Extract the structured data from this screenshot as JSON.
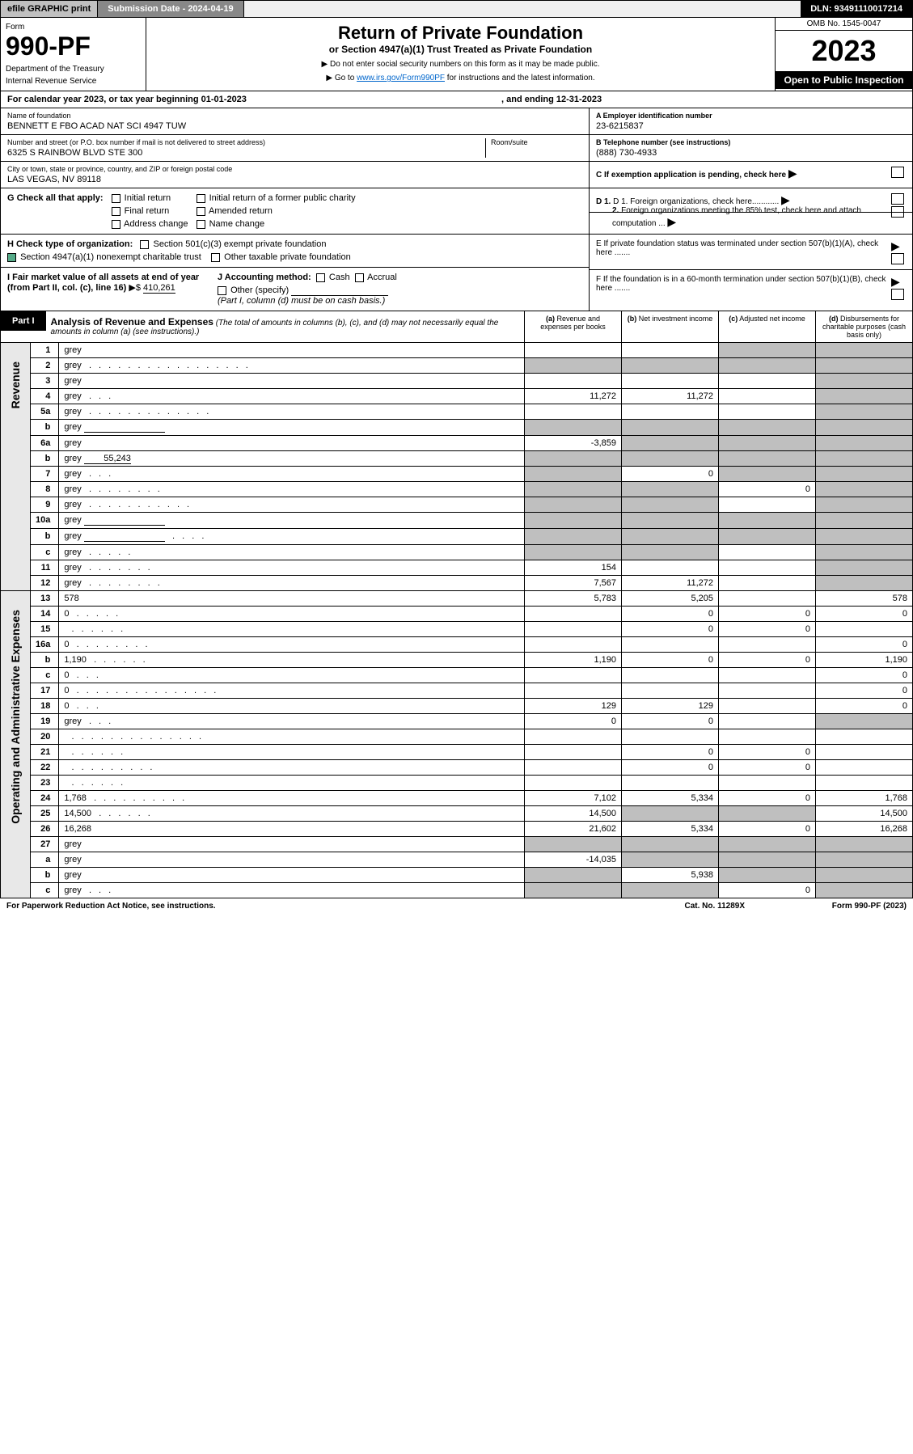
{
  "topbar": {
    "efile": "efile GRAPHIC print",
    "subdate_label": "Submission Date - 2024-04-19",
    "dln": "DLN: 93491110017214"
  },
  "header": {
    "form_label": "Form",
    "form_no": "990-PF",
    "dept": "Department of the Treasury",
    "irs": "Internal Revenue Service",
    "title": "Return of Private Foundation",
    "subtitle": "or Section 4947(a)(1) Trust Treated as Private Foundation",
    "note1": "▶ Do not enter social security numbers on this form as it may be made public.",
    "note2_pre": "▶ Go to ",
    "note2_link": "www.irs.gov/Form990PF",
    "note2_post": " for instructions and the latest information.",
    "omb": "OMB No. 1545-0047",
    "year": "2023",
    "open": "Open to Public Inspection"
  },
  "cal": {
    "text1": "For calendar year 2023, or tax year beginning 01-01-2023",
    "text2": ", and ending 12-31-2023"
  },
  "info": {
    "name_lbl": "Name of foundation",
    "name": "BENNETT E FBO ACAD NAT SCI 4947 TUW",
    "addr_lbl": "Number and street (or P.O. box number if mail is not delivered to street address)",
    "addr": "6325 S RAINBOW BLVD STE 300",
    "room_lbl": "Room/suite",
    "city_lbl": "City or town, state or province, country, and ZIP or foreign postal code",
    "city": "LAS VEGAS, NV  89118",
    "ein_lbl": "A Employer identification number",
    "ein": "23-6215837",
    "tel_lbl": "B Telephone number (see instructions)",
    "tel": "(888) 730-4933",
    "c_lbl": "C If exemption application is pending, check here",
    "d1": "D 1. Foreign organizations, check here............",
    "d2": "2. Foreign organizations meeting the 85% test, check here and attach computation ...",
    "e": "E  If private foundation status was terminated under section 507(b)(1)(A), check here .......",
    "f": "F  If the foundation is in a 60-month termination under section 507(b)(1)(B), check here .......",
    "g_lbl": "G Check all that apply:",
    "g_initial": "Initial return",
    "g_initial_former": "Initial return of a former public charity",
    "g_final": "Final return",
    "g_amended": "Amended return",
    "g_addr": "Address change",
    "g_name": "Name change",
    "h_lbl": "H Check type of organization:",
    "h_501": "Section 501(c)(3) exempt private foundation",
    "h_4947": "Section 4947(a)(1) nonexempt charitable trust",
    "h_other": "Other taxable private foundation",
    "i_lbl": "I Fair market value of all assets at end of year (from Part II, col. (c), line 16)",
    "i_val": "410,261",
    "j_lbl": "J Accounting method:",
    "j_cash": "Cash",
    "j_accrual": "Accrual",
    "j_other": "Other (specify)",
    "j_note": "(Part I, column (d) must be on cash basis.)"
  },
  "part1": {
    "label": "Part I",
    "title": "Analysis of Revenue and Expenses",
    "subtitle": "(The total of amounts in columns (b), (c), and (d) may not necessarily equal the amounts in column (a) (see instructions).)",
    "col_a": "(a)  Revenue and expenses per books",
    "col_b": "(b)  Net investment income",
    "col_c": "(c)  Adjusted net income",
    "col_d": "(d)  Disbursements for charitable purposes (cash basis only)"
  },
  "sides": {
    "revenue": "Revenue",
    "opadmin": "Operating and Administrative Expenses"
  },
  "rows": [
    {
      "n": "1",
      "d": "grey",
      "a": "",
      "b": "",
      "c": "grey"
    },
    {
      "n": "2",
      "d": "grey",
      "a": "grey",
      "b": "grey",
      "c": "grey",
      "dots": ". . . . . . . . . . . . . . . . ."
    },
    {
      "n": "3",
      "d": "grey",
      "a": "",
      "b": "",
      "c": ""
    },
    {
      "n": "4",
      "d": "grey",
      "a": "11,272",
      "b": "11,272",
      "c": "",
      "dots": ".  .  ."
    },
    {
      "n": "5a",
      "d": "grey",
      "a": "",
      "b": "",
      "c": "",
      "dots": ". . . . . . . . . . . . ."
    },
    {
      "n": "b",
      "d": "grey",
      "a": "grey",
      "b": "grey",
      "c": "grey",
      "inline": true
    },
    {
      "n": "6a",
      "d": "grey",
      "a": "-3,859",
      "b": "grey",
      "c": "grey"
    },
    {
      "n": "b",
      "d": "grey",
      "a": "grey",
      "b": "grey",
      "c": "grey",
      "inline_val": "55,243"
    },
    {
      "n": "7",
      "d": "grey",
      "a": "grey",
      "b": "0",
      "c": "grey",
      "dots": ".  .  ."
    },
    {
      "n": "8",
      "d": "grey",
      "a": "grey",
      "b": "grey",
      "c": "0",
      "dots": ".  .  .  .  .  .  .  ."
    },
    {
      "n": "9",
      "d": "grey",
      "a": "grey",
      "b": "grey",
      "c": "",
      "dots": ".  .  .  .  .  .  .  .  .  .  ."
    },
    {
      "n": "10a",
      "d": "grey",
      "a": "grey",
      "b": "grey",
      "c": "grey",
      "inline": true
    },
    {
      "n": "b",
      "d": "grey",
      "a": "grey",
      "b": "grey",
      "c": "grey",
      "inline": true,
      "dots": ".  .  .  ."
    },
    {
      "n": "c",
      "d": "grey",
      "a": "grey",
      "b": "grey",
      "c": "",
      "dots": ".  .  .  .  ."
    },
    {
      "n": "11",
      "d": "grey",
      "a": "154",
      "b": "",
      "c": "",
      "dots": ".  .  .  .  .  .  ."
    },
    {
      "n": "12",
      "d": "grey",
      "a": "7,567",
      "b": "11,272",
      "c": "",
      "dots": ".  .  .  .  .  .  .  ."
    },
    {
      "n": "13",
      "d": "578",
      "a": "5,783",
      "b": "5,205",
      "c": ""
    },
    {
      "n": "14",
      "d": "0",
      "a": "",
      "b": "0",
      "c": "0",
      "dots": ".  .  .  .  ."
    },
    {
      "n": "15",
      "d": "",
      "a": "",
      "b": "0",
      "c": "0",
      "dots": ".  .  .  .  .  ."
    },
    {
      "n": "16a",
      "d": "0",
      "a": "",
      "b": "",
      "c": "",
      "dots": ".  .  .  .  .  .  .  ."
    },
    {
      "n": "b",
      "d": "1,190",
      "a": "1,190",
      "b": "0",
      "c": "0",
      "dots": ".  .  .  .  .  ."
    },
    {
      "n": "c",
      "d": "0",
      "a": "",
      "b": "",
      "c": "",
      "dots": ".  .  ."
    },
    {
      "n": "17",
      "d": "0",
      "a": "",
      "b": "",
      "c": "",
      "dots": ".  .  .  .  .  .  .  .  .  .  .  .  .  .  ."
    },
    {
      "n": "18",
      "d": "0",
      "a": "129",
      "b": "129",
      "c": "",
      "dots": ".  .  ."
    },
    {
      "n": "19",
      "d": "grey",
      "a": "0",
      "b": "0",
      "c": "",
      "dots": ".  .  ."
    },
    {
      "n": "20",
      "d": "",
      "a": "",
      "b": "",
      "c": "",
      "dots": ".  .  .  .  .  .  .  .  .  .  .  .  .  ."
    },
    {
      "n": "21",
      "d": "",
      "a": "",
      "b": "0",
      "c": "0",
      "dots": ".  .  .  .  .  ."
    },
    {
      "n": "22",
      "d": "",
      "a": "",
      "b": "0",
      "c": "0",
      "dots": ".  .  .  .  .  .  .  .  ."
    },
    {
      "n": "23",
      "d": "",
      "a": "",
      "b": "",
      "c": "",
      "dots": ".  .  .  .  .  ."
    },
    {
      "n": "24",
      "d": "1,768",
      "a": "7,102",
      "b": "5,334",
      "c": "0",
      "dots": ".  .  .  .  .  .  .  .  .  ."
    },
    {
      "n": "25",
      "d": "14,500",
      "a": "14,500",
      "b": "grey",
      "c": "grey",
      "dots": ".  .  .  .  .  ."
    },
    {
      "n": "26",
      "d": "16,268",
      "a": "21,602",
      "b": "5,334",
      "c": "0"
    },
    {
      "n": "27",
      "d": "grey",
      "a": "grey",
      "b": "grey",
      "c": "grey"
    },
    {
      "n": "a",
      "d": "grey",
      "a": "-14,035",
      "b": "grey",
      "c": "grey"
    },
    {
      "n": "b",
      "d": "grey",
      "a": "grey",
      "b": "5,938",
      "c": "grey"
    },
    {
      "n": "c",
      "d": "grey",
      "a": "grey",
      "b": "grey",
      "c": "0",
      "dots": ".  .  ."
    }
  ],
  "footer": {
    "left": "For Paperwork Reduction Act Notice, see instructions.",
    "mid": "Cat. No. 11289X",
    "right": "Form 990-PF (2023)"
  }
}
